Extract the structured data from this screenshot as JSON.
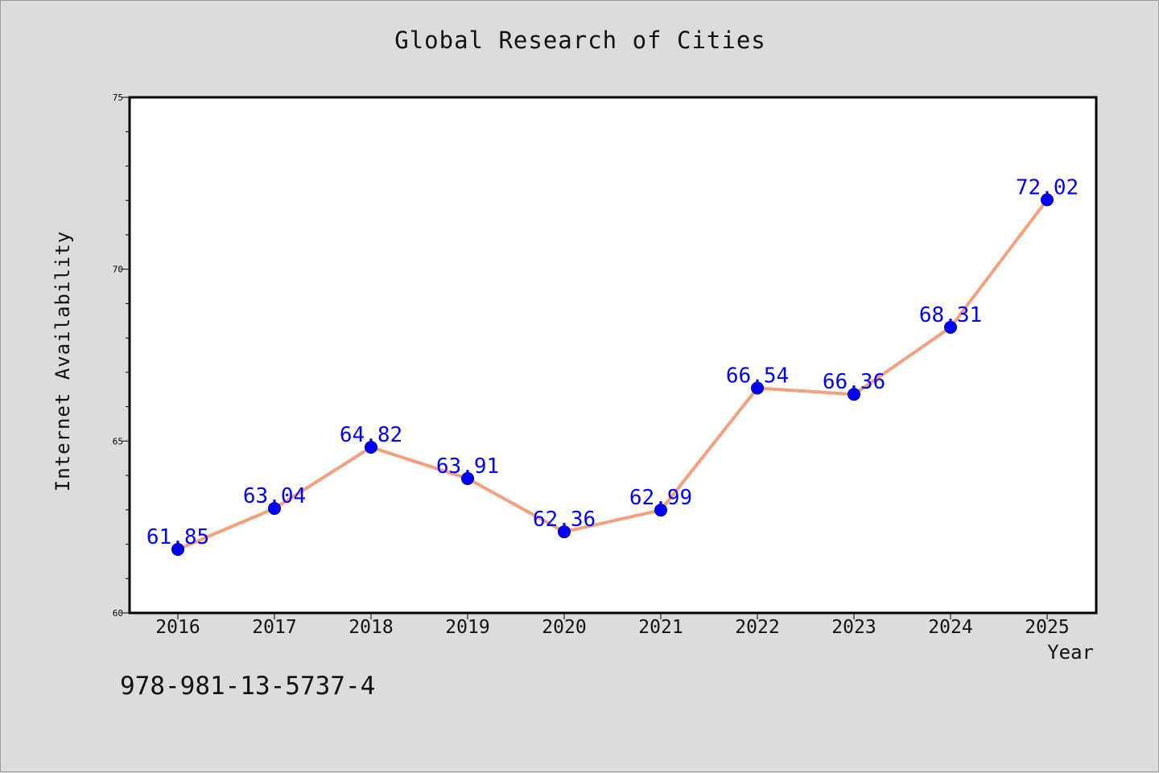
{
  "chart_data": {
    "type": "line",
    "title": "Global Research of Cities",
    "xlabel": "Year",
    "ylabel": "Internet Availability",
    "categories": [
      "2016",
      "2017",
      "2018",
      "2019",
      "2020",
      "2021",
      "2022",
      "2023",
      "2024",
      "2025"
    ],
    "series": [
      {
        "values": [
          61.85,
          63.04,
          64.82,
          63.91,
          62.36,
          62.99,
          66.54,
          66.36,
          68.31,
          72.02
        ],
        "data_labels": [
          "61.85",
          "63.04",
          "64.82",
          "63.91",
          "62.36",
          "62.99",
          "66.54",
          "66.36",
          "68.31",
          "72.02"
        ],
        "line_color": "#f4a07e",
        "marker_color": "#0000ff",
        "label_color": "#0000ff"
      }
    ],
    "ylim": [
      60,
      75
    ],
    "y_ticks": [
      "60",
      "65",
      "70",
      "75"
    ],
    "grid": false,
    "legend": "none"
  },
  "annotation": "978-981-13-5737-4"
}
